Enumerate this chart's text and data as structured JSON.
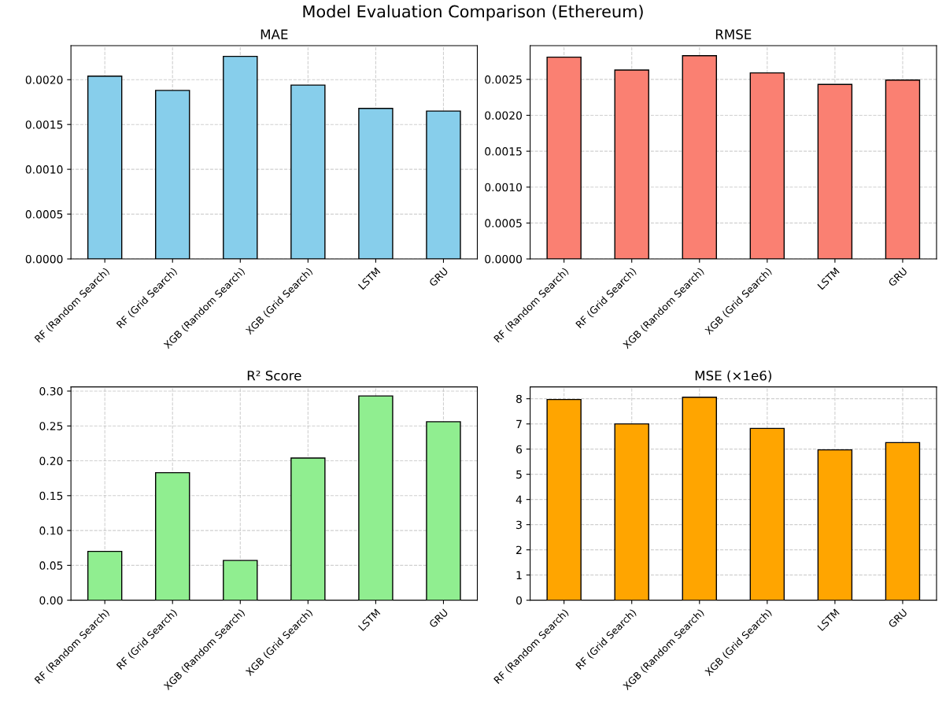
{
  "chart_data": [
    {
      "type": "bar",
      "title": "MAE",
      "annotations": [
        "Model Evaluation Comparison (Ethereum)"
      ],
      "categories": [
        "RF (Random Search)",
        "RF (Grid Search)",
        "XGB (Random Search)",
        "XGB (Grid Search)",
        "LSTM",
        "GRU"
      ],
      "values": [
        0.00204,
        0.00188,
        0.00226,
        0.00194,
        0.00168,
        0.00165
      ],
      "color": "#87ceeb",
      "ylim": [
        0,
        0.00238
      ],
      "yticks": [
        {
          "value": 0,
          "label": "0.0000"
        },
        {
          "value": 0.0005,
          "label": "0.0005"
        },
        {
          "value": 0.001,
          "label": "0.0010"
        },
        {
          "value": 0.0015,
          "label": "0.0015"
        },
        {
          "value": 0.002,
          "label": "0.0020"
        }
      ],
      "grid": true
    },
    {
      "type": "bar",
      "title": "RMSE",
      "categories": [
        "RF (Random Search)",
        "RF (Grid Search)",
        "XGB (Random Search)",
        "XGB (Grid Search)",
        "LSTM",
        "GRU"
      ],
      "values": [
        0.00281,
        0.00263,
        0.00283,
        0.00259,
        0.00243,
        0.00249
      ],
      "color": "#fa8072",
      "ylim": [
        0,
        0.00297
      ],
      "yticks": [
        {
          "value": 0,
          "label": "0.0000"
        },
        {
          "value": 0.0005,
          "label": "0.0005"
        },
        {
          "value": 0.001,
          "label": "0.0010"
        },
        {
          "value": 0.0015,
          "label": "0.0015"
        },
        {
          "value": 0.002,
          "label": "0.0020"
        },
        {
          "value": 0.0025,
          "label": "0.0025"
        }
      ],
      "grid": true
    },
    {
      "type": "bar",
      "title": "R² Score",
      "categories": [
        "RF (Random Search)",
        "RF (Grid Search)",
        "XGB (Random Search)",
        "XGB (Grid Search)",
        "LSTM",
        "GRU"
      ],
      "values": [
        0.07,
        0.183,
        0.057,
        0.204,
        0.293,
        0.256
      ],
      "color": "#90ee90",
      "ylim": [
        0,
        0.306
      ],
      "yticks": [
        {
          "value": 0,
          "label": "0.00"
        },
        {
          "value": 0.05,
          "label": "0.05"
        },
        {
          "value": 0.1,
          "label": "0.10"
        },
        {
          "value": 0.15,
          "label": "0.15"
        },
        {
          "value": 0.2,
          "label": "0.20"
        },
        {
          "value": 0.25,
          "label": "0.25"
        },
        {
          "value": 0.3,
          "label": "0.30"
        }
      ],
      "grid": true
    },
    {
      "type": "bar",
      "title": "MSE (×1e6)",
      "categories": [
        "RF (Random Search)",
        "RF (Grid Search)",
        "XGB (Random Search)",
        "XGB (Grid Search)",
        "LSTM",
        "GRU"
      ],
      "values": [
        7.97,
        7.0,
        8.06,
        6.82,
        5.97,
        6.26
      ],
      "color": "#ffa500",
      "ylim": [
        0,
        8.47
      ],
      "yticks": [
        0,
        1,
        2,
        3,
        4,
        5,
        6,
        7,
        8
      ],
      "grid": true
    }
  ]
}
